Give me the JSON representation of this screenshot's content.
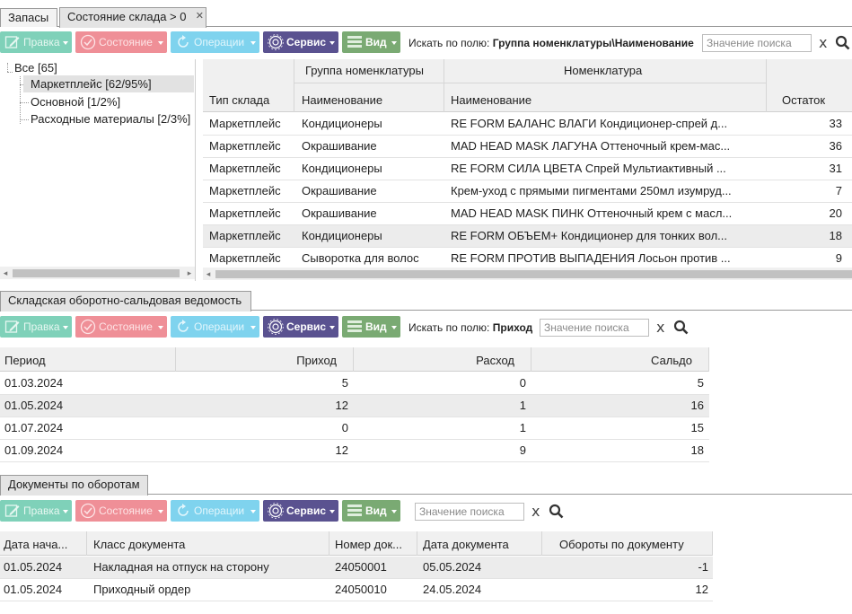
{
  "top_tabs": [
    {
      "label": "Запасы"
    },
    {
      "label": "Состояние склада > 0"
    }
  ],
  "toolbar": {
    "edit": "Правка",
    "state": "Состояние",
    "ops": "Операции",
    "service": "Сервис",
    "view": "Вид",
    "search_by": "Искать по полю:",
    "search_placeholder": "Значение поиска",
    "clear": "x"
  },
  "panel1": {
    "search_field": "Группа номенклатуры\\Наименование",
    "tree": [
      {
        "label": "Все [65]"
      },
      {
        "label": "Маркетплейс [62/95%]"
      },
      {
        "label": "Основной [1/2%]"
      },
      {
        "label": "Расходные материалы [2/3%]"
      }
    ],
    "group_headers": {
      "group": "Группа номенклатуры",
      "nomen": "Номенклатура"
    },
    "columns": {
      "type": "Тип склада",
      "group_name": "Наименование",
      "nomen_name": "Наименование",
      "rest": "Остаток"
    },
    "rows": [
      {
        "type": "Маркетплейс",
        "group": "Кондиционеры",
        "name": "RE FORM БАЛАНС ВЛАГИ Кондиционер-спрей д...",
        "rest": "33"
      },
      {
        "type": "Маркетплейс",
        "group": "Окрашивание",
        "name": "MAD HEAD MASK ЛАГУНА Оттеночный крем-мас...",
        "rest": "36"
      },
      {
        "type": "Маркетплейс",
        "group": "Кондиционеры",
        "name": "RE FORM СИЛА ЦВЕТА Спрей Мультиактивный ...",
        "rest": "31"
      },
      {
        "type": "Маркетплейс",
        "group": "Окрашивание",
        "name": "Крем-уход с прямыми пигментами 250мл изумруд...",
        "rest": "7"
      },
      {
        "type": "Маркетплейс",
        "group": "Окрашивание",
        "name": "MAD HEAD MASK ПИНК Оттеночный крем с масл...",
        "rest": "20"
      },
      {
        "type": "Маркетплейс",
        "group": "Кондиционеры",
        "name": "RE FORM ОБЪЕМ+ Кондиционер для тонких вол...",
        "rest": "18"
      },
      {
        "type": "Маркетплейс",
        "group": "Сыворотка для волос",
        "name": "RE FORM ПРОТИВ ВЫПАДЕНИЯ Лосьон против ...",
        "rest": "9"
      }
    ]
  },
  "panel2": {
    "tab": "Складская оборотно-сальдовая ведомость",
    "search_field": "Приход",
    "columns": {
      "period": "Период",
      "income": "Приход",
      "outcome": "Расход",
      "balance": "Сальдо"
    },
    "rows": [
      {
        "period": "01.03.2024",
        "income": "5",
        "outcome": "0",
        "balance": "5"
      },
      {
        "period": "01.05.2024",
        "income": "12",
        "outcome": "1",
        "balance": "16"
      },
      {
        "period": "01.07.2024",
        "income": "0",
        "outcome": "1",
        "balance": "15"
      },
      {
        "period": "01.09.2024",
        "income": "12",
        "outcome": "9",
        "balance": "18"
      }
    ]
  },
  "panel3": {
    "tab": "Документы по оборотам",
    "columns": {
      "start": "Дата нача...",
      "doc_class": "Класс документа",
      "doc_num": "Номер док...",
      "doc_date": "Дата документа",
      "turnover": "Обороты по документу"
    },
    "rows": [
      {
        "start": "01.05.2024",
        "doc_class": "Накладная на отпуск на сторону",
        "doc_num": "24050001",
        "doc_date": "05.05.2024",
        "turnover": "-1"
      },
      {
        "start": "01.05.2024",
        "doc_class": "Приходный ордер",
        "doc_num": "24050010",
        "doc_date": "24.05.2024",
        "turnover": "12"
      }
    ]
  }
}
